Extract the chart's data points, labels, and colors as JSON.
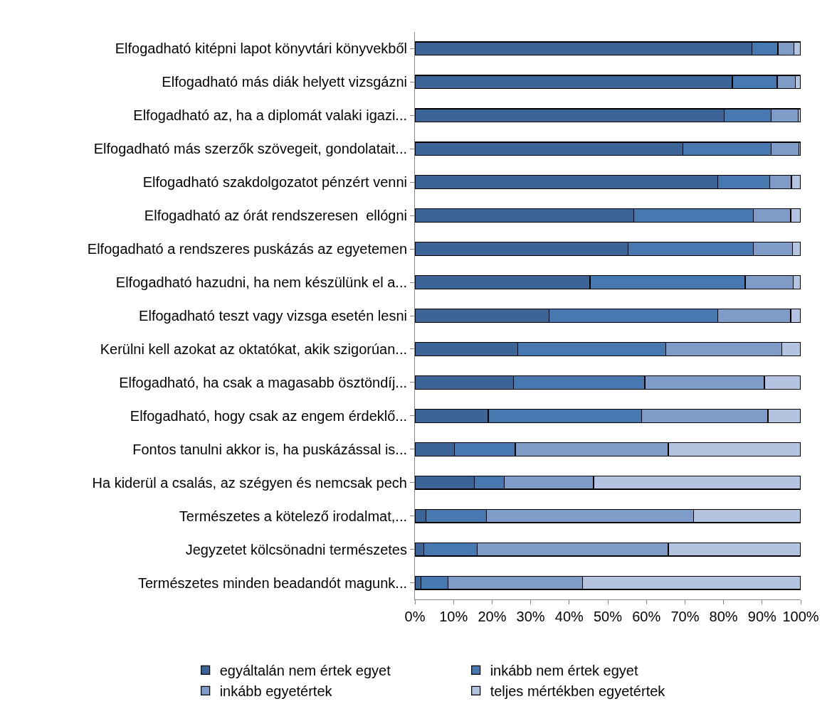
{
  "chart_data": {
    "type": "bar",
    "orientation": "horizontal",
    "stacked": true,
    "categories": [
      "Elfogadható kitépni lapot könyvtári könyvekből",
      "Elfogadható más diák helyett vizsgázni",
      "Elfogadható az, ha a diplomát valaki igazi...",
      "Elfogadható más szerzők szövegeit, gondolatait...",
      "Elfogadható szakdolgozatot pénzért venni",
      "Elfogadható az órát rendszeresen  ellógni",
      "Elfogadható a rendszeres puskázás az egyetemen",
      "Elfogadható hazudni, ha nem készülünk el a...",
      "Elfogadható teszt vagy vizsga esetén lesni",
      "Kerülni kell azokat az oktatókat, akik szigorúan...",
      "Elfogadható, ha csak a magasabb ösztöndíj...",
      "Elfogadható, hogy csak az engem érdeklő...",
      "Fontos tanulni akkor is, ha puskázással is...",
      "Ha kiderül a csalás, az szégyen és nemcsak pech",
      "Természetes a kötelező irodalmat,...",
      "Jegyzetet kölcsönadni természetes",
      "Természetes minden beadandót magunk..."
    ],
    "series": [
      {
        "name": "egyáltalán nem értek egyet",
        "color": "#3c6496",
        "values": [
          87.3,
          82.3,
          80.2,
          69.5,
          78.5,
          56.7,
          55.2,
          45.4,
          34.8,
          26.6,
          25.5,
          19.0,
          10.2,
          15.4,
          2.9,
          2.3,
          1.5
        ]
      },
      {
        "name": "inkább nem értek egyet",
        "color": "#4878b0",
        "values": [
          6.8,
          11.6,
          12.2,
          22.8,
          13.5,
          31.0,
          32.5,
          40.2,
          43.7,
          38.5,
          34.1,
          39.7,
          15.8,
          7.8,
          15.6,
          13.9,
          7.1
        ]
      },
      {
        "name": "inkább egyetértek",
        "color": "#7f9cc8",
        "values": [
          4.1,
          4.7,
          6.9,
          7.2,
          5.6,
          9.7,
          10.2,
          12.5,
          18.9,
          30.0,
          31.0,
          32.8,
          39.7,
          23.1,
          53.7,
          49.5,
          34.9
        ]
      },
      {
        "name": "teljes mértékben egyetértek",
        "color": "#b4c3df",
        "values": [
          1.8,
          1.4,
          0.7,
          0.5,
          2.4,
          2.6,
          2.1,
          1.9,
          2.6,
          4.9,
          9.4,
          8.5,
          34.3,
          53.7,
          27.8,
          34.3,
          56.5
        ]
      }
    ],
    "xlim": [
      0,
      100
    ],
    "xticks": [
      {
        "value": 0,
        "label": "0%"
      },
      {
        "value": 10,
        "label": "10%"
      },
      {
        "value": 20,
        "label": "20%"
      },
      {
        "value": 30,
        "label": "30%"
      },
      {
        "value": 40,
        "label": "40%"
      },
      {
        "value": 50,
        "label": "50%"
      },
      {
        "value": 60,
        "label": "60%"
      },
      {
        "value": 70,
        "label": "70%"
      },
      {
        "value": 80,
        "label": "80%"
      },
      {
        "value": 90,
        "label": "90%"
      },
      {
        "value": 100,
        "label": "100%"
      }
    ],
    "grid": false,
    "legend": "bottom"
  }
}
